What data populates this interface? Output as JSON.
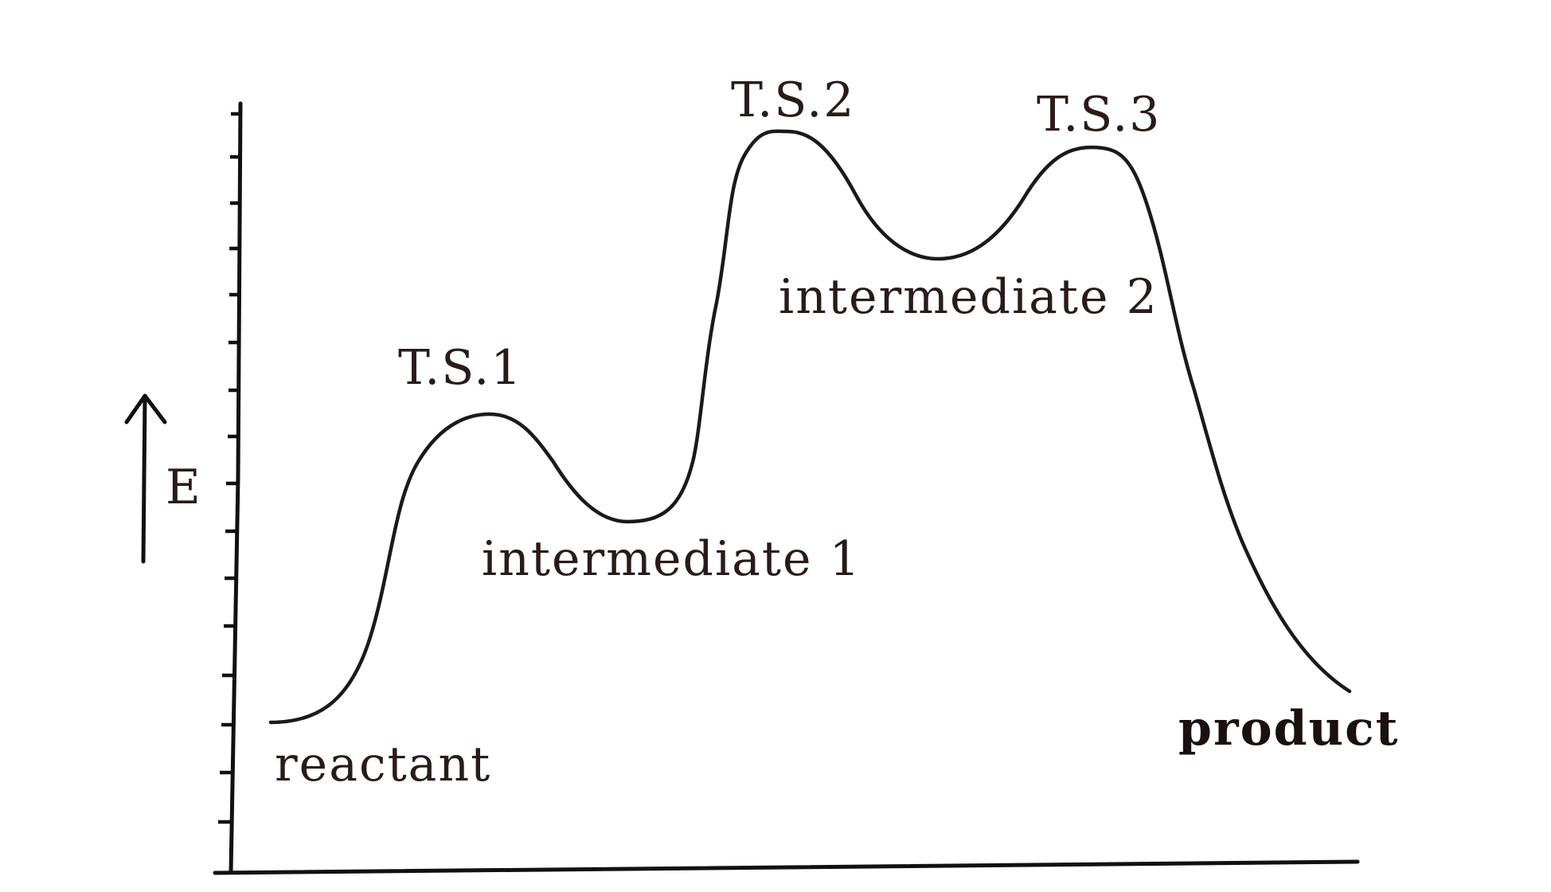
{
  "diagram": {
    "y_axis_label": "E",
    "peaks": {
      "ts1": "T.S.1",
      "ts2": "T.S.2",
      "ts3": "T.S.3"
    },
    "valleys": {
      "intermediate1": "intermediate 1",
      "intermediate2": "intermediate 2"
    },
    "ends": {
      "reactant": "reactant",
      "product": "product"
    }
  }
}
